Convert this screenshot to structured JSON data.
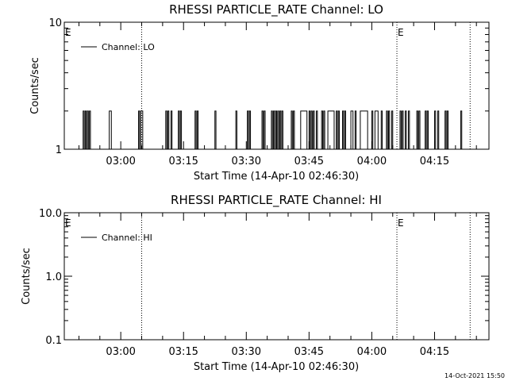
{
  "chart_data": [
    {
      "type": "line",
      "title": "RHESSI PARTICLE_RATE Channel: LO",
      "xlabel": "Start Time (14-Apr-10 02:46:30)",
      "ylabel": "Counts/sec",
      "yscale": "log",
      "ylim": [
        1,
        10
      ],
      "ytick_labels": [
        "1",
        "10"
      ],
      "xlim": [
        "02:46:30",
        "04:28:00"
      ],
      "xtick_labels": [
        "03:00",
        "03:15",
        "03:30",
        "03:45",
        "04:00",
        "04:15"
      ],
      "legend": {
        "position": "top-left",
        "entries": [
          "Channel: LO"
        ]
      },
      "vertical_markers": [
        {
          "time": "02:46:30",
          "label": "E",
          "line": false
        },
        {
          "time": "03:05:00",
          "label": "",
          "line": true
        },
        {
          "time": "04:06:00",
          "label": "E",
          "line": true
        },
        {
          "time": "04:23:30",
          "label": "",
          "line": true
        }
      ],
      "series": [
        {
          "name": "Channel: LO",
          "baseline": 1,
          "pulse_value": 2,
          "pulses": [
            [
              "02:51:00",
              "02:51:15"
            ],
            [
              "02:51:30",
              "02:51:45"
            ],
            [
              "02:52:00",
              "02:52:15"
            ],
            [
              "02:52:30",
              "02:52:45"
            ],
            [
              "02:57:15",
              "02:57:45"
            ],
            [
              "03:04:15",
              "03:04:30"
            ],
            [
              "03:04:45",
              "03:05:15"
            ],
            [
              "03:10:45",
              "03:11:00"
            ],
            [
              "03:11:15",
              "03:11:30"
            ],
            [
              "03:12:00",
              "03:12:15"
            ],
            [
              "03:13:45",
              "03:14:00"
            ],
            [
              "03:14:15",
              "03:14:30"
            ],
            [
              "03:17:45",
              "03:18:00"
            ],
            [
              "03:18:15",
              "03:18:30"
            ],
            [
              "03:22:30",
              "03:22:45"
            ],
            [
              "03:27:30",
              "03:27:45"
            ],
            [
              "03:30:15",
              "03:30:30"
            ],
            [
              "03:30:45",
              "03:31:00"
            ],
            [
              "03:33:45",
              "03:34:00"
            ],
            [
              "03:34:15",
              "03:34:30"
            ],
            [
              "03:36:00",
              "03:36:15"
            ],
            [
              "03:36:30",
              "03:36:45"
            ],
            [
              "03:37:00",
              "03:37:15"
            ],
            [
              "03:37:30",
              "03:37:45"
            ],
            [
              "03:38:00",
              "03:38:15"
            ],
            [
              "03:38:30",
              "03:38:45"
            ],
            [
              "03:40:45",
              "03:41:00"
            ],
            [
              "03:41:15",
              "03:41:30"
            ],
            [
              "03:43:00",
              "03:44:30"
            ],
            [
              "03:45:00",
              "03:45:15"
            ],
            [
              "03:45:30",
              "03:45:45"
            ],
            [
              "03:46:00",
              "03:46:15"
            ],
            [
              "03:46:45",
              "03:47:00"
            ],
            [
              "03:48:00",
              "03:48:15"
            ],
            [
              "03:48:30",
              "03:48:45"
            ],
            [
              "03:49:30",
              "03:51:00"
            ],
            [
              "03:51:30",
              "03:51:45"
            ],
            [
              "03:52:00",
              "03:52:15"
            ],
            [
              "03:53:00",
              "03:53:15"
            ],
            [
              "03:53:30",
              "03:53:45"
            ],
            [
              "03:55:00",
              "03:55:30"
            ],
            [
              "03:56:00",
              "03:56:15"
            ],
            [
              "03:57:15",
              "03:59:00"
            ],
            [
              "04:00:00",
              "04:00:15"
            ],
            [
              "04:00:45",
              "04:01:30"
            ],
            [
              "04:02:15",
              "04:02:30"
            ],
            [
              "04:03:30",
              "04:03:45"
            ],
            [
              "04:04:00",
              "04:04:15"
            ],
            [
              "04:04:45",
              "04:05:00"
            ],
            [
              "04:06:45",
              "04:07:00"
            ],
            [
              "04:07:15",
              "04:07:30"
            ],
            [
              "04:08:00",
              "04:08:15"
            ],
            [
              "04:08:45",
              "04:09:00"
            ],
            [
              "04:10:45",
              "04:11:00"
            ],
            [
              "04:11:15",
              "04:11:30"
            ],
            [
              "04:12:45",
              "04:13:00"
            ],
            [
              "04:13:15",
              "04:13:30"
            ],
            [
              "04:15:00",
              "04:15:15"
            ],
            [
              "04:15:45",
              "04:16:00"
            ],
            [
              "04:17:30",
              "04:17:45"
            ],
            [
              "04:18:00",
              "04:18:15"
            ],
            [
              "04:21:15",
              "04:21:30"
            ]
          ]
        }
      ]
    },
    {
      "type": "line",
      "title": "RHESSI PARTICLE_RATE Channel: HI",
      "xlabel": "Start Time (14-Apr-10 02:46:30)",
      "ylabel": "Counts/sec",
      "yscale": "log",
      "ylim": [
        0.1,
        10
      ],
      "ytick_labels": [
        "0.1",
        "1.0",
        "10.0"
      ],
      "xlim": [
        "02:46:30",
        "04:28:00"
      ],
      "xtick_labels": [
        "03:00",
        "03:15",
        "03:30",
        "03:45",
        "04:00",
        "04:15"
      ],
      "legend": {
        "position": "top-left",
        "entries": [
          "Channel: HI"
        ]
      },
      "vertical_markers": [
        {
          "time": "02:46:30",
          "label": "E",
          "line": false
        },
        {
          "time": "03:05:00",
          "label": "",
          "line": true
        },
        {
          "time": "04:06:00",
          "label": "E",
          "line": true
        },
        {
          "time": "04:23:30",
          "label": "",
          "line": true
        }
      ],
      "series": [
        {
          "name": "Channel: HI",
          "baseline": null,
          "pulse_value": null,
          "pulses": []
        }
      ]
    }
  ],
  "footer": {
    "timestamp": "14-Oct-2021 15:50"
  }
}
